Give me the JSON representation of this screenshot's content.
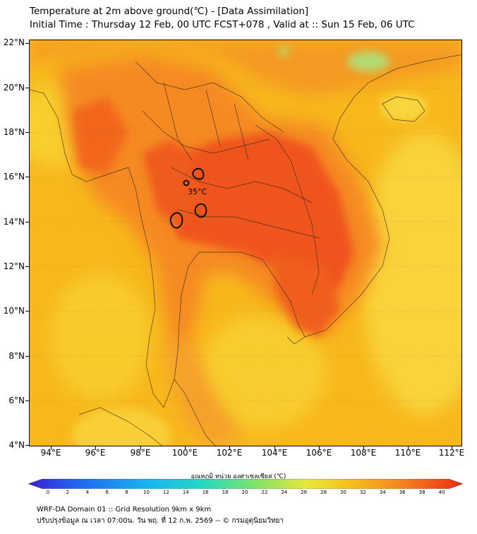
{
  "title_line1": "Temperature at 2m above ground(℃) - [Data Assimilation]",
  "title_line2": "Initial Time : Thursday 12 Feb, 00 UTC FCST+078 , Valid at :: Sun 15 Feb, 06 UTC",
  "map": {
    "lat_labels": [
      "22°N",
      "20°N",
      "18°N",
      "16°N",
      "14°N",
      "12°N",
      "10°N",
      "8°N",
      "6°N",
      "4°N"
    ],
    "lon_labels": [
      "94°E",
      "96°E",
      "98°E",
      "100°E",
      "102°E",
      "104°E",
      "106°E",
      "108°E",
      "110°E",
      "112°E"
    ],
    "contour_label": "35°C",
    "colors": {
      "background_yellow": "#f7b81c",
      "warm_orange": "#f57a1f",
      "hot_red": "#ef4a1a",
      "cool_yellow": "#f8d63a",
      "sea_green": "#9fe68a"
    }
  },
  "colorbar": {
    "label": "อุณหภูมิ หน่วย องศาเซลเซียส (℃)",
    "ticks": [
      "0",
      "2",
      "4",
      "6",
      "8",
      "10",
      "12",
      "14",
      "16",
      "18",
      "20",
      "22",
      "24",
      "26",
      "28",
      "30",
      "32",
      "34",
      "36",
      "38",
      "40"
    ],
    "colors": [
      "#3a1fd6",
      "#1e6bf0",
      "#1ab6f2",
      "#22d9c2",
      "#7ee36a",
      "#e8e83a",
      "#f7c01c",
      "#f5841f",
      "#ee2a14"
    ]
  },
  "footer_line1": "WRF-DA Domain 01 :: Grid Resolution 9km x 9km",
  "footer_line2": "ปรับปรุงข้อมูล ณ เวลา 07:00น. วัน พฤ. ที่ 12 ก.พ. 2569 -- © กรมอุตุนิยมวิทยา"
}
